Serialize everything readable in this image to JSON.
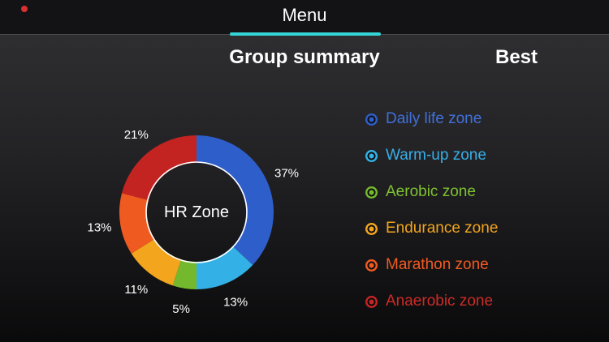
{
  "header": {
    "menu_title": "Menu",
    "tabs": [
      {
        "label": "Group summary",
        "active": true
      },
      {
        "label": "Best",
        "active": false
      }
    ],
    "accent_color": "#35d4d6"
  },
  "chart_data": {
    "type": "pie",
    "donut": true,
    "center_label": "HR Zone",
    "unit": "%",
    "start_angle_deg": 0,
    "direction": "clockwise",
    "legend_position": "right",
    "segments": [
      {
        "label": "Daily life zone",
        "value": 37,
        "color": "#2e5ec9",
        "text_color": "#4170d8"
      },
      {
        "label": "Warm-up zone",
        "value": 13,
        "color": "#33b1e6",
        "text_color": "#38aee8"
      },
      {
        "label": "Aerobic zone",
        "value": 5,
        "color": "#74b92d",
        "text_color": "#7fc231"
      },
      {
        "label": "Endurance zone",
        "value": 11,
        "color": "#f2a51d",
        "text_color": "#f2a51d"
      },
      {
        "label": "Marathon zone",
        "value": 13,
        "color": "#ef5a20",
        "text_color": "#f05a22"
      },
      {
        "label": "Anaerobic zone",
        "value": 21,
        "color": "#c32422",
        "text_color": "#cd2b26"
      }
    ]
  }
}
